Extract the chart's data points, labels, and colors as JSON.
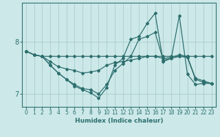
{
  "xlabel": "Humidex (Indice chaleur)",
  "background_color": "#cce8e8",
  "line_color": "#2d6e6e",
  "grid_color": "#aacccc",
  "xlim": [
    -0.5,
    23.5
  ],
  "ylim": [
    6.75,
    8.75
  ],
  "yticks": [
    7,
    8
  ],
  "xticks": [
    0,
    1,
    2,
    3,
    4,
    5,
    6,
    7,
    8,
    9,
    10,
    11,
    12,
    13,
    14,
    15,
    16,
    17,
    18,
    19,
    20,
    21,
    22,
    23
  ],
  "lines": [
    {
      "x": [
        0,
        1,
        2,
        3,
        4,
        5,
        6,
        7,
        8,
        9,
        10,
        11,
        12,
        13,
        14,
        15,
        16,
        17,
        18,
        19,
        20,
        21,
        22,
        23
      ],
      "y": [
        7.82,
        7.75,
        7.72,
        7.72,
        7.72,
        7.72,
        7.72,
        7.72,
        7.72,
        7.72,
        7.72,
        7.72,
        7.72,
        7.72,
        7.72,
        7.72,
        7.72,
        7.72,
        7.72,
        7.72,
        7.72,
        7.72,
        7.72,
        7.72
      ]
    },
    {
      "x": [
        0,
        1,
        2,
        3,
        4,
        5,
        6,
        7,
        8,
        9,
        10,
        11,
        12,
        13,
        14,
        15,
        16,
        17,
        18,
        19,
        20,
        21,
        22,
        23
      ],
      "y": [
        7.82,
        7.75,
        7.72,
        7.62,
        7.52,
        7.48,
        7.45,
        7.4,
        7.42,
        7.45,
        7.55,
        7.6,
        7.62,
        7.65,
        7.68,
        7.72,
        7.72,
        7.68,
        7.7,
        7.75,
        7.72,
        7.3,
        7.25,
        7.2
      ]
    },
    {
      "x": [
        0,
        1,
        2,
        3,
        4,
        5,
        6,
        7,
        8,
        9,
        10,
        11,
        12,
        13,
        14,
        15,
        16,
        17,
        18,
        19,
        20,
        21,
        22,
        23
      ],
      "y": [
        7.82,
        7.75,
        7.72,
        7.55,
        7.4,
        7.28,
        7.18,
        7.1,
        7.08,
        7.0,
        7.18,
        7.45,
        7.58,
        7.72,
        8.05,
        8.1,
        8.18,
        7.65,
        7.68,
        7.72,
        7.7,
        7.28,
        7.22,
        7.2
      ]
    },
    {
      "x": [
        0,
        1,
        2,
        3,
        4,
        5,
        6,
        7,
        8,
        9,
        10,
        11,
        12,
        13,
        14,
        15,
        16,
        17,
        18,
        19,
        20,
        21,
        22,
        23
      ],
      "y": [
        7.82,
        7.75,
        7.72,
        7.55,
        7.4,
        7.28,
        7.15,
        7.08,
        7.02,
        6.92,
        7.12,
        7.55,
        7.68,
        8.05,
        8.1,
        8.35,
        8.55,
        7.62,
        7.68,
        8.5,
        7.38,
        7.18,
        7.2,
        7.2
      ]
    }
  ]
}
